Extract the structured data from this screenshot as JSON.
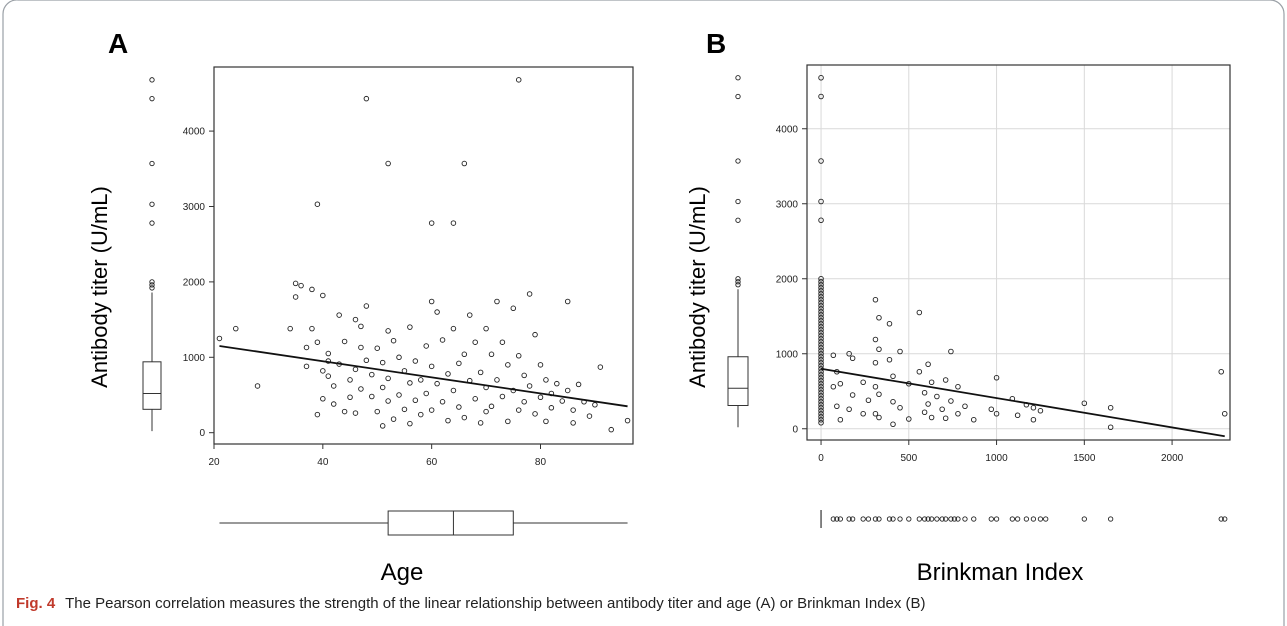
{
  "figure": {
    "caption_label": "Fig. 4",
    "caption_text": "The Pearson correlation measures the strength of the linear relationship between antibody titer and age (A) or Brinkman Index (B)"
  },
  "chart_data": [
    {
      "panel": "A",
      "type": "scatter",
      "xlabel": "Age",
      "ylabel": "Antibody titer (U/mL)",
      "xlim": [
        20,
        97
      ],
      "ylim": [
        -150,
        4850
      ],
      "xticks": [
        20,
        40,
        60,
        80
      ],
      "yticks": [
        0,
        1000,
        2000,
        3000,
        4000
      ],
      "grid": false,
      "regression_line": {
        "x0": 21,
        "y0": 1150,
        "x1": 96,
        "y1": 350
      },
      "y_boxplot": {
        "min": 20,
        "q1": 310,
        "median": 520,
        "q3": 940,
        "max": 1860,
        "outliers": [
          1920,
          1960,
          2000,
          2780,
          3030,
          3570,
          4430,
          4680
        ]
      },
      "x_boxplot": {
        "min": 21,
        "q1": 52,
        "median": 64,
        "q3": 75,
        "max": 96,
        "outliers": []
      },
      "points": [
        [
          21,
          1250
        ],
        [
          24,
          1380
        ],
        [
          28,
          620
        ],
        [
          34,
          1380
        ],
        [
          35,
          1980
        ],
        [
          35,
          1800
        ],
        [
          36,
          1950
        ],
        [
          37,
          1130
        ],
        [
          37,
          880
        ],
        [
          38,
          1900
        ],
        [
          38,
          1380
        ],
        [
          39,
          3030
        ],
        [
          39,
          1200
        ],
        [
          39,
          240
        ],
        [
          40,
          1820
        ],
        [
          40,
          820
        ],
        [
          40,
          450
        ],
        [
          41,
          750
        ],
        [
          41,
          1050
        ],
        [
          41,
          950
        ],
        [
          42,
          620
        ],
        [
          42,
          380
        ],
        [
          43,
          1560
        ],
        [
          43,
          910
        ],
        [
          44,
          280
        ],
        [
          44,
          1210
        ],
        [
          45,
          700
        ],
        [
          45,
          470
        ],
        [
          46,
          1500
        ],
        [
          46,
          840
        ],
        [
          46,
          260
        ],
        [
          47,
          1410
        ],
        [
          47,
          1130
        ],
        [
          47,
          580
        ],
        [
          48,
          4430
        ],
        [
          48,
          1680
        ],
        [
          48,
          960
        ],
        [
          49,
          480
        ],
        [
          49,
          770
        ],
        [
          50,
          1120
        ],
        [
          50,
          280
        ],
        [
          51,
          930
        ],
        [
          51,
          600
        ],
        [
          51,
          90
        ],
        [
          52,
          3570
        ],
        [
          52,
          1350
        ],
        [
          52,
          720
        ],
        [
          52,
          420
        ],
        [
          53,
          1220
        ],
        [
          53,
          180
        ],
        [
          54,
          1000
        ],
        [
          54,
          500
        ],
        [
          55,
          820
        ],
        [
          55,
          310
        ],
        [
          56,
          1400
        ],
        [
          56,
          660
        ],
        [
          56,
          120
        ],
        [
          57,
          950
        ],
        [
          57,
          430
        ],
        [
          58,
          700
        ],
        [
          58,
          240
        ],
        [
          59,
          1150
        ],
        [
          59,
          520
        ],
        [
          60,
          2780
        ],
        [
          60,
          1740
        ],
        [
          60,
          880
        ],
        [
          60,
          300
        ],
        [
          61,
          1600
        ],
        [
          61,
          650
        ],
        [
          62,
          1230
        ],
        [
          62,
          410
        ],
        [
          63,
          780
        ],
        [
          63,
          160
        ],
        [
          64,
          2780
        ],
        [
          64,
          1380
        ],
        [
          64,
          560
        ],
        [
          65,
          920
        ],
        [
          65,
          340
        ],
        [
          66,
          3570
        ],
        [
          66,
          1040
        ],
        [
          66,
          200
        ],
        [
          67,
          1560
        ],
        [
          67,
          690
        ],
        [
          68,
          1200
        ],
        [
          68,
          450
        ],
        [
          69,
          800
        ],
        [
          69,
          130
        ],
        [
          70,
          1380
        ],
        [
          70,
          600
        ],
        [
          70,
          280
        ],
        [
          71,
          1040
        ],
        [
          71,
          350
        ],
        [
          72,
          1740
        ],
        [
          72,
          700
        ],
        [
          73,
          1200
        ],
        [
          73,
          480
        ],
        [
          74,
          900
        ],
        [
          74,
          150
        ],
        [
          75,
          1650
        ],
        [
          75,
          560
        ],
        [
          76,
          4680
        ],
        [
          76,
          1020
        ],
        [
          76,
          300
        ],
        [
          77,
          760
        ],
        [
          77,
          410
        ],
        [
          78,
          1840
        ],
        [
          78,
          620
        ],
        [
          79,
          1300
        ],
        [
          79,
          250
        ],
        [
          80,
          900
        ],
        [
          80,
          470
        ],
        [
          81,
          700
        ],
        [
          81,
          150
        ],
        [
          82,
          520
        ],
        [
          82,
          330
        ],
        [
          83,
          650
        ],
        [
          84,
          420
        ],
        [
          85,
          1740
        ],
        [
          85,
          560
        ],
        [
          86,
          300
        ],
        [
          86,
          130
        ],
        [
          87,
          640
        ],
        [
          88,
          410
        ],
        [
          89,
          220
        ],
        [
          90,
          370
        ],
        [
          91,
          870
        ],
        [
          93,
          40
        ],
        [
          96,
          160
        ]
      ]
    },
    {
      "panel": "B",
      "type": "scatter",
      "xlabel": "Brinkman Index",
      "ylabel": "Antibody titer (U/mL)",
      "xlim": [
        -80,
        2330
      ],
      "ylim": [
        -150,
        4850
      ],
      "xticks": [
        0,
        500,
        1000,
        1500,
        2000
      ],
      "yticks": [
        0,
        1000,
        2000,
        3000,
        4000
      ],
      "grid": true,
      "regression_line": {
        "x0": 0,
        "y0": 800,
        "x1": 2300,
        "y1": -100
      },
      "y_boxplot": {
        "min": 20,
        "q1": 310,
        "median": 540,
        "q3": 960,
        "max": 1860,
        "outliers": [
          1920,
          1960,
          2000,
          2780,
          3030,
          3570,
          4430,
          4680
        ]
      },
      "x_rug": [
        0,
        70,
        90,
        110,
        160,
        180,
        240,
        270,
        310,
        330,
        390,
        410,
        450,
        500,
        560,
        590,
        610,
        630,
        660,
        690,
        710,
        740,
        760,
        780,
        820,
        870,
        970,
        1000,
        1090,
        1120,
        1170,
        1210,
        1250,
        1280,
        1500,
        1650,
        2280,
        2300
      ],
      "points": [
        [
          0,
          4680
        ],
        [
          0,
          4430
        ],
        [
          0,
          3570
        ],
        [
          0,
          3030
        ],
        [
          0,
          2780
        ],
        [
          0,
          2000
        ],
        [
          0,
          1960
        ],
        [
          0,
          1920
        ],
        [
          0,
          1880
        ],
        [
          0,
          1840
        ],
        [
          0,
          1800
        ],
        [
          0,
          1760
        ],
        [
          0,
          1720
        ],
        [
          0,
          1680
        ],
        [
          0,
          1640
        ],
        [
          0,
          1600
        ],
        [
          0,
          1560
        ],
        [
          0,
          1520
        ],
        [
          0,
          1480
        ],
        [
          0,
          1440
        ],
        [
          0,
          1400
        ],
        [
          0,
          1360
        ],
        [
          0,
          1320
        ],
        [
          0,
          1280
        ],
        [
          0,
          1240
        ],
        [
          0,
          1200
        ],
        [
          0,
          1160
        ],
        [
          0,
          1120
        ],
        [
          0,
          1080
        ],
        [
          0,
          1040
        ],
        [
          0,
          1000
        ],
        [
          0,
          960
        ],
        [
          0,
          920
        ],
        [
          0,
          880
        ],
        [
          0,
          840
        ],
        [
          0,
          800
        ],
        [
          0,
          760
        ],
        [
          0,
          720
        ],
        [
          0,
          680
        ],
        [
          0,
          640
        ],
        [
          0,
          600
        ],
        [
          0,
          560
        ],
        [
          0,
          520
        ],
        [
          0,
          480
        ],
        [
          0,
          440
        ],
        [
          0,
          400
        ],
        [
          0,
          360
        ],
        [
          0,
          320
        ],
        [
          0,
          280
        ],
        [
          0,
          240
        ],
        [
          0,
          200
        ],
        [
          0,
          160
        ],
        [
          0,
          120
        ],
        [
          0,
          80
        ],
        [
          70,
          980
        ],
        [
          70,
          560
        ],
        [
          90,
          760
        ],
        [
          90,
          300
        ],
        [
          110,
          600
        ],
        [
          110,
          120
        ],
        [
          160,
          1000
        ],
        [
          160,
          260
        ],
        [
          180,
          940
        ],
        [
          180,
          450
        ],
        [
          240,
          620
        ],
        [
          240,
          200
        ],
        [
          270,
          380
        ],
        [
          310,
          1720
        ],
        [
          310,
          1190
        ],
        [
          310,
          880
        ],
        [
          310,
          560
        ],
        [
          310,
          200
        ],
        [
          330,
          1480
        ],
        [
          330,
          1060
        ],
        [
          330,
          460
        ],
        [
          330,
          150
        ],
        [
          390,
          1400
        ],
        [
          390,
          920
        ],
        [
          410,
          700
        ],
        [
          410,
          360
        ],
        [
          410,
          60
        ],
        [
          450,
          1030
        ],
        [
          450,
          280
        ],
        [
          500,
          600
        ],
        [
          500,
          130
        ],
        [
          560,
          1550
        ],
        [
          560,
          760
        ],
        [
          590,
          480
        ],
        [
          590,
          220
        ],
        [
          610,
          860
        ],
        [
          610,
          330
        ],
        [
          630,
          620
        ],
        [
          630,
          150
        ],
        [
          660,
          430
        ],
        [
          690,
          260
        ],
        [
          710,
          650
        ],
        [
          710,
          140
        ],
        [
          740,
          1030
        ],
        [
          740,
          370
        ],
        [
          780,
          560
        ],
        [
          780,
          200
        ],
        [
          820,
          300
        ],
        [
          870,
          120
        ],
        [
          970,
          260
        ],
        [
          1000,
          680
        ],
        [
          1000,
          200
        ],
        [
          1090,
          400
        ],
        [
          1120,
          180
        ],
        [
          1170,
          320
        ],
        [
          1210,
          280
        ],
        [
          1210,
          120
        ],
        [
          1250,
          240
        ],
        [
          1500,
          340
        ],
        [
          1650,
          280
        ],
        [
          1650,
          20
        ],
        [
          2280,
          760
        ],
        [
          2300,
          200
        ]
      ]
    }
  ]
}
